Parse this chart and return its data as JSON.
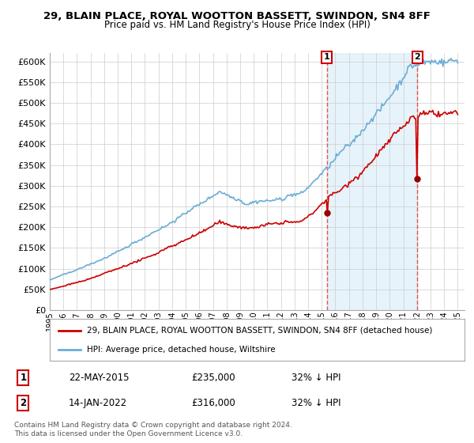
{
  "title1": "29, BLAIN PLACE, ROYAL WOOTTON BASSETT, SWINDON, SN4 8FF",
  "title2": "Price paid vs. HM Land Registry's House Price Index (HPI)",
  "ytick_vals": [
    0,
    50000,
    100000,
    150000,
    200000,
    250000,
    300000,
    350000,
    400000,
    450000,
    500000,
    550000,
    600000
  ],
  "hpi_color": "#6aaed6",
  "price_color": "#cc0000",
  "vline_color": "#dd4444",
  "bg_color": "#ffffff",
  "plot_bg": "#f0f4fa",
  "shade_color": "#ddeeff",
  "sale1_date": 2015.38,
  "sale1_price": 235000,
  "sale2_date": 2022.04,
  "sale2_price": 316000,
  "legend_line1": "29, BLAIN PLACE, ROYAL WOOTTON BASSETT, SWINDON, SN4 8FF (detached house)",
  "legend_line2": "HPI: Average price, detached house, Wiltshire",
  "note1_num": "1",
  "note1_date": "22-MAY-2015",
  "note1_price": "£235,000",
  "note1_hpi": "32% ↓ HPI",
  "note2_num": "2",
  "note2_date": "14-JAN-2022",
  "note2_price": "£316,000",
  "note2_hpi": "32% ↓ HPI",
  "footer": "Contains HM Land Registry data © Crown copyright and database right 2024.\nThis data is licensed under the Open Government Licence v3.0."
}
